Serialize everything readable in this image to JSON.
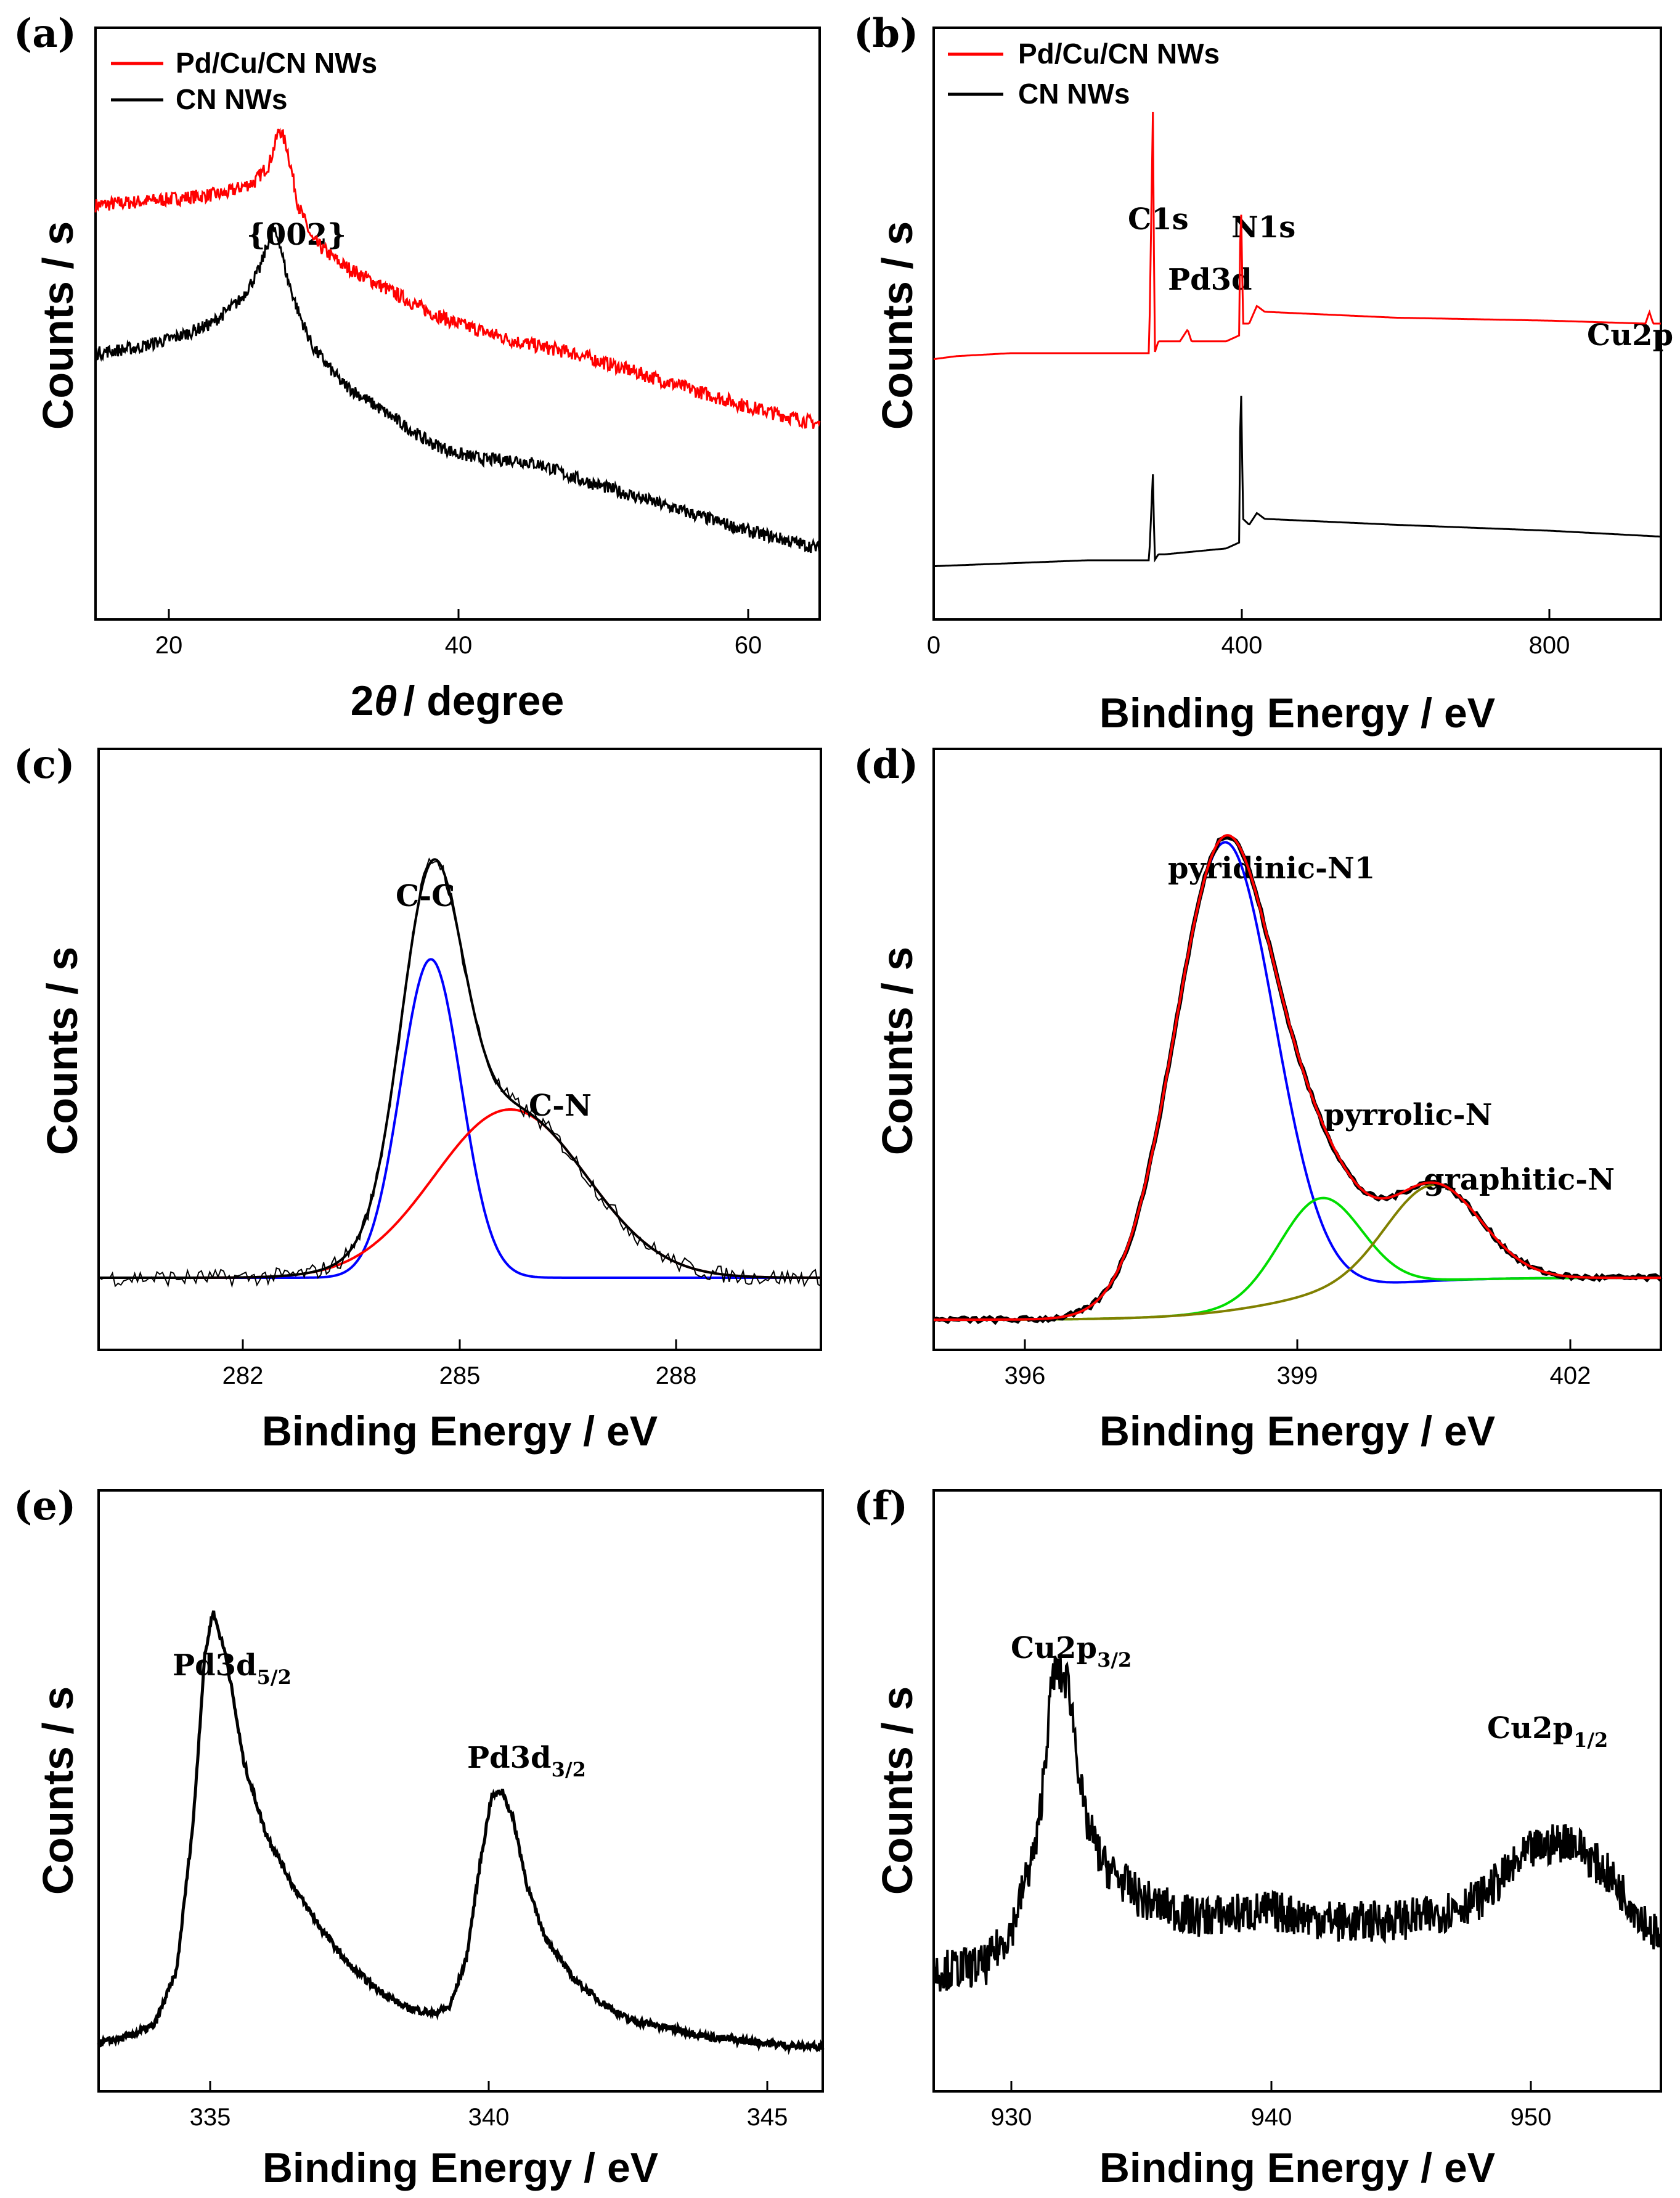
{
  "chart_data": [
    {
      "panel": "(a)",
      "type": "line",
      "xlabel_prefix": "2",
      "xlabel_theta": "θ",
      "xlabel_rest": "/ degree",
      "ylabel": "Counts / s",
      "xlim": [
        15,
        65
      ],
      "xticks": [
        "20",
        "40",
        "60"
      ],
      "xtick_values": [
        20,
        40,
        60
      ],
      "legend": [
        "Pd/Cu/CN NWs",
        "CN NWs"
      ],
      "annotations": [
        "{002}"
      ],
      "series": [
        {
          "name": "Pd/Cu/CN NWs",
          "color": "#ff0000",
          "x": [
            15,
            20,
            24,
            26,
            27,
            27.7,
            28.2,
            29,
            30,
            32,
            35,
            38,
            40,
            44,
            48,
            52,
            56,
            60,
            65
          ],
          "y": [
            0.7,
            0.71,
            0.72,
            0.74,
            0.77,
            0.83,
            0.8,
            0.7,
            0.64,
            0.6,
            0.56,
            0.52,
            0.5,
            0.47,
            0.45,
            0.42,
            0.39,
            0.36,
            0.33
          ],
          "noise": 0.012
        },
        {
          "name": "CN NWs",
          "color": "#000000",
          "x": [
            15,
            18,
            21,
            23,
            25,
            26.3,
            27.2,
            27.7,
            28.2,
            29,
            30,
            32,
            35,
            38,
            40,
            42,
            44,
            46,
            48,
            52,
            56,
            60,
            65
          ],
          "y": [
            0.45,
            0.46,
            0.48,
            0.5,
            0.54,
            0.59,
            0.66,
            0.64,
            0.58,
            0.52,
            0.46,
            0.4,
            0.35,
            0.3,
            0.28,
            0.27,
            0.27,
            0.26,
            0.24,
            0.21,
            0.18,
            0.15,
            0.12
          ],
          "noise": 0.011
        }
      ]
    },
    {
      "panel": "(b)",
      "type": "line",
      "xlabel": "Binding Energy / eV",
      "ylabel": "Counts / s",
      "xlim": [
        0,
        945
      ],
      "xticks": [
        "0",
        "400",
        "800"
      ],
      "xtick_values": [
        0,
        400,
        800
      ],
      "legend": [
        "Pd/Cu/CN NWs",
        "CN NWs"
      ],
      "annotations": [
        "C1s",
        "Pd3d",
        "N1s",
        "Cu2p"
      ],
      "series": [
        {
          "name": "Pd/Cu/CN NWs",
          "color": "#ff0000",
          "x": [
            0,
            30,
            100,
            200,
            280,
            285,
            287,
            292,
            300,
            320,
            330,
            335,
            345,
            380,
            397,
            399,
            402,
            410,
            420,
            430,
            600,
            800,
            925,
            930,
            935,
            945
          ],
          "y": [
            0.44,
            0.445,
            0.45,
            0.45,
            0.45,
            0.87,
            0.45,
            0.47,
            0.47,
            0.47,
            0.49,
            0.47,
            0.47,
            0.47,
            0.48,
            0.73,
            0.5,
            0.5,
            0.53,
            0.52,
            0.51,
            0.505,
            0.5,
            0.52,
            0.5,
            0.5
          ]
        },
        {
          "name": "CN NWs",
          "color": "#000000",
          "x": [
            0,
            100,
            200,
            280,
            285,
            287,
            292,
            300,
            380,
            397,
            399,
            402,
            410,
            420,
            430,
            600,
            800,
            945
          ],
          "y": [
            0.09,
            0.095,
            0.1,
            0.1,
            0.25,
            0.1,
            0.11,
            0.11,
            0.12,
            0.13,
            0.43,
            0.17,
            0.16,
            0.18,
            0.17,
            0.16,
            0.15,
            0.14
          ]
        }
      ]
    },
    {
      "panel": "(c)",
      "type": "line",
      "xlabel": "Binding Energy / eV",
      "ylabel": "Counts / s",
      "xlim": [
        280.0,
        290.0
      ],
      "xticks": [
        "282",
        "285",
        "288"
      ],
      "xtick_values": [
        282,
        285,
        288
      ],
      "annotations": [
        "C-C",
        "C-N"
      ],
      "baseline": 0.12,
      "components": [
        {
          "name": "C-C component",
          "color": "#0000ff",
          "center": 284.6,
          "sigma": 0.42,
          "amp": 0.53
        },
        {
          "name": "C-N component",
          "color": "#ff0000",
          "center": 285.7,
          "sigma": 1.05,
          "amp": 0.28
        }
      ],
      "series": [
        {
          "name": "fitted envelope",
          "color": "#000000",
          "mode": "sum"
        },
        {
          "name": "raw data",
          "color": "#000000",
          "mode": "noisy",
          "noise": 0.014
        }
      ]
    },
    {
      "panel": "(d)",
      "type": "line",
      "xlabel": "Binding Energy / eV",
      "ylabel": "Counts / s",
      "xlim": [
        395.0,
        403.0
      ],
      "xticks": [
        "396",
        "399",
        "402"
      ],
      "xtick_values": [
        396,
        399,
        402
      ],
      "annotations": [
        "pyridinic-N1",
        "pyrrolic-N",
        "graphitic-N"
      ],
      "baseline_left": 0.05,
      "baseline_right": 0.12,
      "baseline_step_center": 399.0,
      "components": [
        {
          "name": "pyridinic-N1 component",
          "color": "#0000ff",
          "center": 398.2,
          "sigma": 0.55,
          "amp": 0.78
        },
        {
          "name": "pyrrolic-N component",
          "color": "#00dd00",
          "center": 399.25,
          "sigma": 0.45,
          "amp": 0.16
        },
        {
          "name": "graphitic-N component",
          "color": "#808000",
          "center": 400.5,
          "sigma": 0.52,
          "amp": 0.16
        }
      ],
      "series": [
        {
          "name": "experimental",
          "color": "#000000",
          "mode": "noisy",
          "noise": 0.004
        },
        {
          "name": "fitted envelope",
          "color": "#ff0000",
          "mode": "sum"
        }
      ]
    },
    {
      "panel": "(e)",
      "type": "line",
      "xlabel": "Binding Energy / eV",
      "ylabel": "Counts / s",
      "xlim": [
        333.0,
        346.0
      ],
      "xticks": [
        "335",
        "340",
        "345"
      ],
      "xtick_values": [
        335,
        340,
        345
      ],
      "annotations": [
        {
          "main": "Pd3d",
          "sub": "5/2"
        },
        {
          "main": "Pd3d",
          "sub": "3/2"
        }
      ],
      "series": [
        {
          "name": "Pd 3d",
          "color": "#000000",
          "x": [
            333.0,
            333.5,
            334.0,
            334.4,
            334.7,
            334.9,
            335.05,
            335.3,
            335.6,
            336.0,
            336.5,
            337.0,
            337.5,
            338.0,
            338.5,
            339.0,
            339.3,
            339.6,
            339.85,
            340.05,
            340.25,
            340.45,
            340.7,
            341.0,
            341.5,
            342.0,
            342.5,
            343.0,
            343.5,
            344.0,
            344.5,
            345.0,
            345.5,
            346.0
          ],
          "y": [
            0.08,
            0.09,
            0.11,
            0.2,
            0.45,
            0.72,
            0.8,
            0.72,
            0.55,
            0.43,
            0.34,
            0.27,
            0.21,
            0.17,
            0.14,
            0.13,
            0.14,
            0.22,
            0.38,
            0.49,
            0.5,
            0.45,
            0.34,
            0.26,
            0.19,
            0.15,
            0.12,
            0.11,
            0.1,
            0.09,
            0.085,
            0.08,
            0.075,
            0.075
          ],
          "noise": 0.006
        }
      ]
    },
    {
      "panel": "(f)",
      "type": "line",
      "xlabel": "Binding Energy / eV",
      "ylabel": "Counts / s",
      "xlim": [
        927.0,
        955.0
      ],
      "xticks": [
        "930",
        "940",
        "950"
      ],
      "xtick_values": [
        930,
        940,
        950
      ],
      "annotations": [
        {
          "main": "Cu2p",
          "sub": "3/2"
        },
        {
          "main": "Cu2p",
          "sub": "1/2"
        }
      ],
      "series": [
        {
          "name": "Cu 2p",
          "color": "#000000",
          "x": [
            927,
            929,
            930,
            931,
            931.6,
            932.2,
            932.8,
            933.5,
            935,
            937,
            940,
            943,
            946,
            948,
            950,
            951.5,
            953,
            955
          ],
          "y": [
            0.2,
            0.21,
            0.27,
            0.42,
            0.7,
            0.68,
            0.46,
            0.38,
            0.32,
            0.29,
            0.3,
            0.28,
            0.29,
            0.32,
            0.4,
            0.42,
            0.36,
            0.25
          ],
          "noise": 0.035
        }
      ]
    }
  ]
}
